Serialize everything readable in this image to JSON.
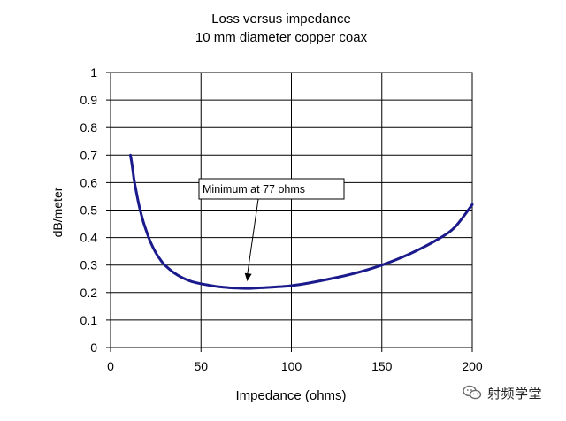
{
  "chart_data": {
    "type": "line",
    "title": "Loss versus impedance",
    "subtitle": "10 mm diameter copper coax",
    "xlabel": "Impedance (ohms)",
    "ylabel": "dB/meter",
    "xlim": [
      0,
      200
    ],
    "ylim": [
      0,
      1
    ],
    "x_ticks": [
      "0",
      "50",
      "100",
      "150",
      "200"
    ],
    "y_ticks": [
      "0",
      "0.1",
      "0.2",
      "0.3",
      "0.4",
      "0.5",
      "0.6",
      "0.7",
      "0.8",
      "0.9",
      "1"
    ],
    "grid": true,
    "series": [
      {
        "color": "#1a1a8c",
        "x": [
          11,
          12,
          13,
          14,
          15,
          16,
          18,
          20,
          22,
          25,
          28,
          30,
          35,
          40,
          45,
          50,
          55,
          60,
          65,
          70,
          75,
          77,
          80,
          85,
          90,
          95,
          100,
          110,
          120,
          130,
          140,
          150,
          160,
          170,
          180,
          190,
          200
        ],
        "y": [
          0.7,
          0.66,
          0.61,
          0.575,
          0.54,
          0.51,
          0.46,
          0.42,
          0.385,
          0.345,
          0.315,
          0.3,
          0.272,
          0.253,
          0.24,
          0.232,
          0.226,
          0.221,
          0.218,
          0.216,
          0.215,
          0.215,
          0.216,
          0.218,
          0.22,
          0.222,
          0.225,
          0.235,
          0.248,
          0.262,
          0.279,
          0.3,
          0.325,
          0.355,
          0.39,
          0.435,
          0.52
        ]
      }
    ],
    "annotations": [
      {
        "text": "Minimum at 77 ohms",
        "x": 77,
        "y": 0.215
      }
    ]
  },
  "watermark": {
    "text": "射频学堂",
    "icon": "wechat-icon"
  }
}
